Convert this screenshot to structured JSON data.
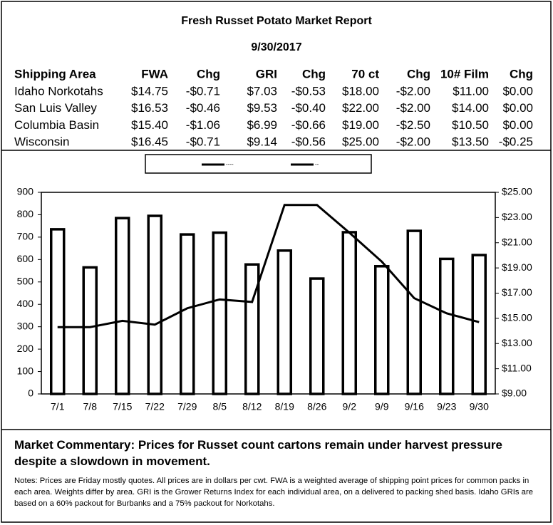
{
  "header": {
    "title": "Fresh Russet Potato Market Report",
    "date": "9/30/2017"
  },
  "table": {
    "header": [
      "Shipping Area",
      "FWA",
      "Chg",
      "GRI",
      "Chg",
      "70 ct",
      "Chg",
      "10# Film",
      "Chg"
    ],
    "rows": [
      [
        "Idaho Norkotahs",
        "$14.75",
        "-$0.71",
        "$7.03",
        "-$0.53",
        "$18.00",
        "-$2.00",
        "$11.00",
        "$0.00"
      ],
      [
        "San Luis Valley",
        "$16.53",
        "-$0.46",
        "$9.53",
        "-$0.40",
        "$22.00",
        "-$2.00",
        "$14.00",
        "$0.00"
      ],
      [
        "Columbia Basin",
        "$15.40",
        "-$1.06",
        "$6.99",
        "-$0.66",
        "$19.00",
        "-$2.50",
        "$10.50",
        "$0.00"
      ],
      [
        "Wisconsin",
        "$16.45",
        "-$0.71",
        "$9.14",
        "-$0.56",
        "$25.00",
        "-$2.00",
        "$13.50",
        "-$0.25"
      ]
    ]
  },
  "chart_data": {
    "type": "bar-line",
    "categories": [
      "7/1",
      "7/8",
      "7/15",
      "7/22",
      "7/29",
      "8/5",
      "8/12",
      "8/19",
      "8/26",
      "9/2",
      "9/9",
      "9/16",
      "9/23",
      "9/30"
    ],
    "series": [
      {
        "name": "----",
        "type": "bar",
        "color": "#000000",
        "values": [
          735,
          565,
          785,
          795,
          712,
          720,
          578,
          640,
          515,
          722,
          570,
          728,
          603,
          620
        ]
      },
      {
        "name": "--",
        "type": "line",
        "axis": "y2",
        "color": "#000000",
        "values": [
          14.3,
          14.3,
          14.8,
          14.5,
          15.8,
          16.5,
          16.3,
          24.0,
          24.0,
          21.8,
          19.5,
          16.6,
          15.4,
          14.7
        ]
      }
    ],
    "ylim": [
      0,
      900
    ],
    "yticks": [
      0,
      100,
      200,
      300,
      400,
      500,
      600,
      700,
      800,
      900
    ],
    "y2lim": [
      9,
      25
    ],
    "y2ticks": [
      {
        "value": 9,
        "label": "$9.00"
      },
      {
        "value": 11,
        "label": "$11.00"
      },
      {
        "value": 13,
        "label": "$13.00"
      },
      {
        "value": 15,
        "label": "$15.00"
      },
      {
        "value": 17,
        "label": "$17.00"
      },
      {
        "value": 19,
        "label": "$19.00"
      },
      {
        "value": 21,
        "label": "$21.00"
      },
      {
        "value": 23,
        "label": "$23.00"
      },
      {
        "value": 25,
        "label": "$25.00"
      }
    ],
    "grid": false,
    "legend": "top"
  },
  "commentary": "Market Commentary: Prices for Russet count cartons remain under harvest pressure despite a slowdown in movement.",
  "notes": "Notes: Prices are Friday mostly quotes. All prices are in dollars per cwt. FWA is a weighted average of shipping point prices for  common packs in each area. Weights differ by area. GRI is the Grower Returns Index for each individual area, on a delivered to packing shed basis. Idaho GRIs are based on a 60% packout for Burbanks and a 75% packout for Norkotahs."
}
